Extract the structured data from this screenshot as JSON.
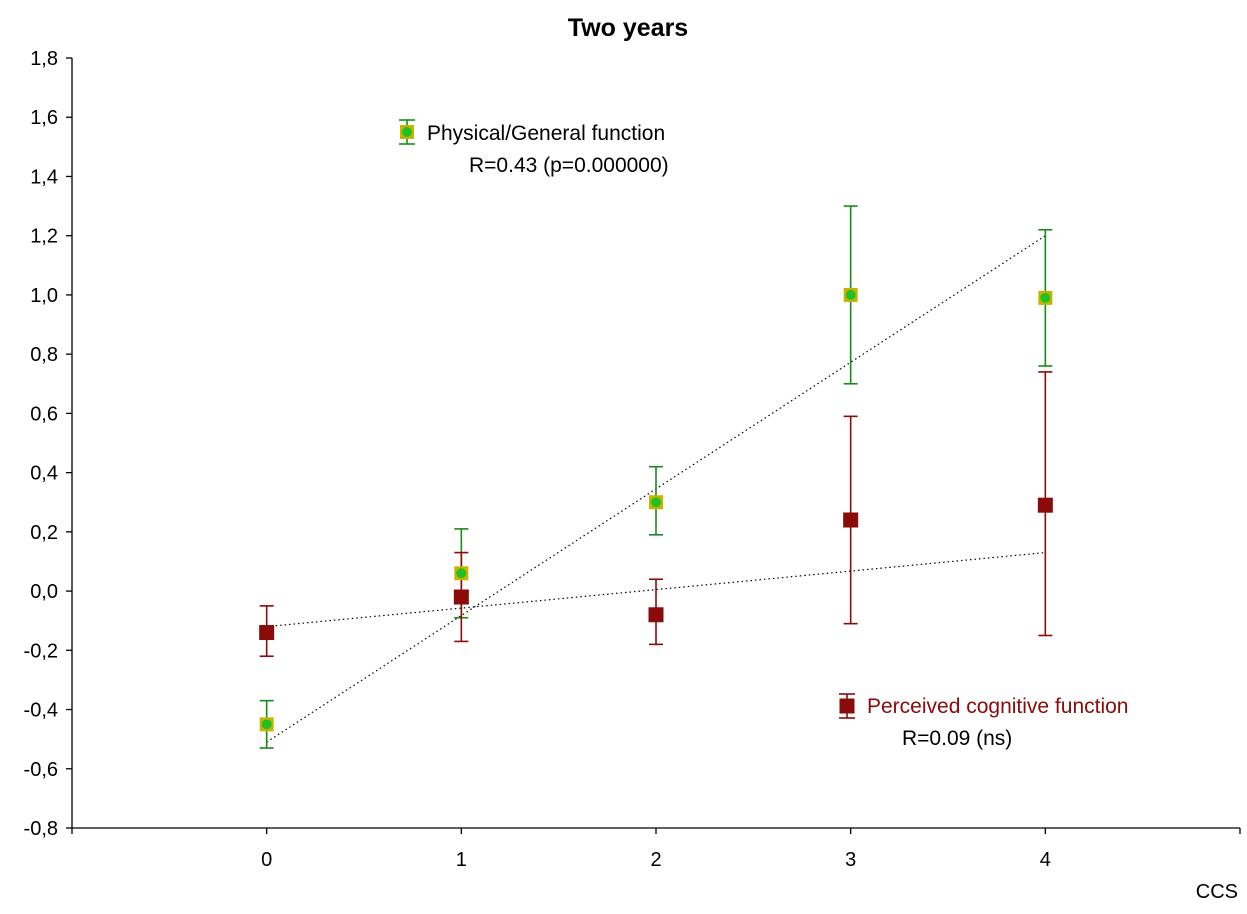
{
  "chart_data": {
    "type": "scatter",
    "title": "Two years",
    "xlabel": "CCS",
    "ylabel": "",
    "x_ticks": [
      "0",
      "1",
      "2",
      "3",
      "4"
    ],
    "y_ticks": [
      "-0,8",
      "-0,6",
      "-0,4",
      "-0,2",
      "0,0",
      "0,2",
      "0,4",
      "0,6",
      "0,8",
      "1,0",
      "1,2",
      "1,4",
      "1,6",
      "1,8"
    ],
    "xlim": [
      -1,
      5
    ],
    "ylim": [
      -0.8,
      1.8
    ],
    "grid": false,
    "series": [
      {
        "name": "Physical/General function",
        "annotation": "R=0.43 (p=0.000000)",
        "color": "#1a8a1a",
        "marker_fill": "#c8b400",
        "marker_center": "#22c022",
        "x": [
          0,
          1,
          2,
          3,
          4
        ],
        "y": [
          -0.45,
          0.06,
          0.3,
          1.0,
          0.99
        ],
        "err_low": [
          -0.53,
          -0.09,
          0.19,
          0.7,
          0.76
        ],
        "err_high": [
          -0.37,
          0.21,
          0.42,
          1.3,
          1.22
        ],
        "trend": [
          [
            0,
            -0.51
          ],
          [
            4,
            1.2
          ]
        ]
      },
      {
        "name": "Perceived cognitive function",
        "annotation": "R=0.09 (ns)",
        "color": "#8b0a0a",
        "marker_fill": "#8b0a0a",
        "x": [
          0,
          1,
          2,
          3,
          4
        ],
        "y": [
          -0.14,
          -0.02,
          -0.08,
          0.24,
          0.29
        ],
        "err_low": [
          -0.22,
          -0.17,
          -0.18,
          -0.11,
          -0.15
        ],
        "err_high": [
          -0.05,
          0.13,
          0.04,
          0.59,
          0.74
        ],
        "trend": [
          [
            0,
            -0.12
          ],
          [
            4,
            0.13
          ]
        ]
      }
    ]
  }
}
